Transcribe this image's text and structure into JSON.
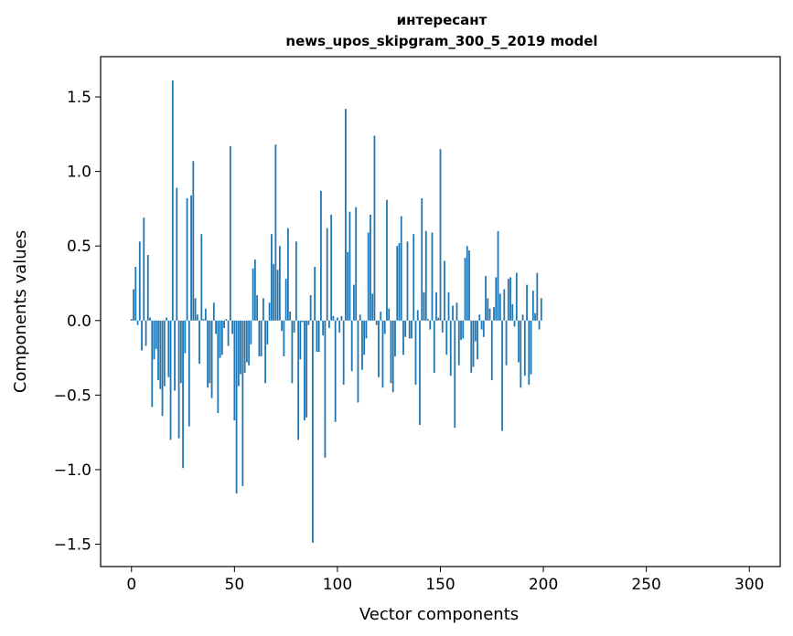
{
  "chart_data": {
    "type": "bar",
    "title": "интересант",
    "subtitle": "news_upos_skipgram_300_5_2019 model",
    "xlabel": "Vector components",
    "ylabel": "Components values",
    "xlim": [
      -15,
      315
    ],
    "ylim": [
      -1.65,
      1.77
    ],
    "xticks": [
      0,
      50,
      100,
      150,
      200,
      250,
      300
    ],
    "xtick_labels": [
      "0",
      "50",
      "100",
      "150",
      "200",
      "250",
      "300"
    ],
    "yticks": [
      -1.5,
      -1.0,
      -0.5,
      0.0,
      0.5,
      1.0,
      1.5
    ],
    "ytick_labels": [
      "−1.5",
      "−1.0",
      "−0.5",
      "0.0",
      "0.5",
      "1.0",
      "1.5"
    ],
    "bar_color": "#1f77b4",
    "series": [
      {
        "name": "components",
        "values": [
          0.01,
          0.21,
          0.36,
          -0.03,
          0.53,
          -0.2,
          0.69,
          -0.17,
          0.44,
          0.02,
          -0.58,
          -0.26,
          -0.19,
          -0.4,
          -0.46,
          -0.64,
          -0.44,
          0.02,
          -0.38,
          -0.8,
          1.61,
          -0.47,
          0.89,
          -0.79,
          -0.42,
          -0.99,
          -0.22,
          0.82,
          -0.71,
          0.84,
          1.07,
          0.15,
          0.04,
          -0.29,
          0.58,
          0.01,
          0.08,
          -0.45,
          -0.42,
          -0.52,
          0.12,
          -0.09,
          -0.62,
          -0.25,
          -0.23,
          -0.05,
          0.01,
          -0.17,
          1.17,
          -0.09,
          -0.67,
          -1.16,
          -0.44,
          -0.36,
          -1.11,
          -0.35,
          -0.28,
          -0.3,
          -0.16,
          0.35,
          0.41,
          0.17,
          -0.24,
          -0.24,
          0.15,
          -0.42,
          -0.16,
          0.12,
          0.58,
          0.38,
          1.18,
          0.34,
          0.5,
          -0.07,
          -0.24,
          0.28,
          0.62,
          0.06,
          -0.42,
          -0.08,
          0.53,
          -0.8,
          -0.26,
          -0.01,
          -0.67,
          -0.65,
          -0.03,
          0.17,
          -1.49,
          0.36,
          -0.21,
          -0.21,
          0.87,
          -0.1,
          -0.92,
          0.62,
          -0.05,
          0.71,
          0.03,
          -0.68,
          0.02,
          -0.08,
          0.03,
          -0.43,
          1.42,
          0.46,
          0.73,
          -0.34,
          0.24,
          0.76,
          -0.55,
          0.04,
          -0.33,
          -0.23,
          -0.12,
          0.59,
          0.71,
          0.18,
          1.24,
          -0.03,
          -0.38,
          0.06,
          -0.45,
          -0.09,
          0.81,
          0.08,
          -0.42,
          -0.48,
          -0.24,
          0.5,
          0.52,
          0.7,
          -0.23,
          -0.11,
          0.53,
          -0.12,
          -0.12,
          0.58,
          -0.43,
          0.07,
          -0.7,
          0.82,
          0.19,
          0.6,
          0.01,
          -0.06,
          0.59,
          -0.35,
          0.19,
          0.02,
          1.15,
          -0.08,
          0.4,
          -0.23,
          0.19,
          -0.37,
          0.1,
          -0.72,
          0.12,
          -0.3,
          -0.13,
          -0.12,
          0.42,
          0.5,
          0.47,
          -0.35,
          -0.31,
          -0.14,
          -0.26,
          0.04,
          -0.06,
          -0.11,
          0.3,
          0.15,
          0.08,
          -0.4,
          0.09,
          0.29,
          0.6,
          0.18,
          -0.74,
          0.21,
          -0.3,
          0.28,
          0.29,
          0.11,
          -0.04,
          0.32,
          -0.28,
          -0.45,
          0.04,
          -0.37,
          0.24,
          -0.43,
          -0.36,
          0.2,
          0.05,
          0.32,
          -0.06,
          0.15
        ]
      }
    ]
  }
}
